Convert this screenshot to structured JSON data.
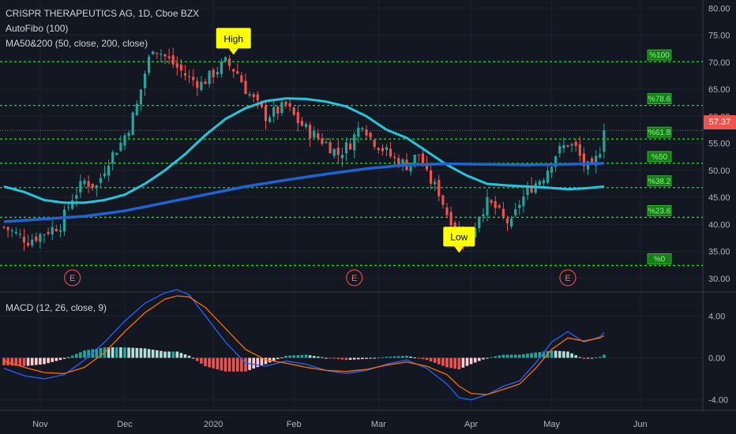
{
  "header": {
    "title": "CRISPR THERAPEUTICS AG, 1D, Cboe BZX",
    "indicator_fib": "AutoFibo (100)",
    "indicator_ma": "MA50&200 (50, close, 200, close)",
    "indicator_macd": "MACD (12, 26, close, 9)"
  },
  "last_price": "57.37",
  "colors": {
    "background": "#131722",
    "grid": "#1e2230",
    "up": "#26a69a",
    "down": "#ef5350",
    "ma50": "#26c6da",
    "ma200": "#1e63d1",
    "fib": "#33cc33",
    "macd_line": "#2962ff",
    "signal_line": "#ff6d00",
    "axis_text": "#b2b5be",
    "annotation": "#ffff00"
  },
  "chart_data": [
    {
      "type": "candlestick",
      "title": "CRISPR THERAPEUTICS AG, 1D, Cboe BZX",
      "y_axis_labels": [
        "80.00",
        "75.00",
        "70.00",
        "65.00",
        "60.00",
        "55.00",
        "50.00",
        "45.00",
        "40.00",
        "35.00",
        "30.00"
      ],
      "y_ticks": [
        80,
        75,
        70,
        65,
        60,
        55,
        50,
        45,
        40,
        35,
        30
      ],
      "ylim": [
        27.5,
        81.5
      ],
      "x_axis_labels": [
        "Nov",
        "Dec",
        "2020",
        "Feb",
        "Mar",
        "Apr",
        "May",
        "Jun"
      ],
      "x_label_index": [
        9,
        30,
        52,
        72,
        93,
        116,
        136,
        158
      ],
      "n_bars": 150,
      "close_keyframes": [
        [
          0,
          39.5
        ],
        [
          6,
          37
        ],
        [
          10,
          38.5
        ],
        [
          14,
          40
        ],
        [
          17,
          45
        ],
        [
          20,
          48
        ],
        [
          23,
          47
        ],
        [
          26,
          52
        ],
        [
          29,
          55
        ],
        [
          31,
          58
        ],
        [
          33,
          62
        ],
        [
          35,
          68
        ],
        [
          37,
          73
        ],
        [
          40,
          71
        ],
        [
          43,
          69
        ],
        [
          46,
          67
        ],
        [
          49,
          66
        ],
        [
          52,
          68
        ],
        [
          55,
          70
        ],
        [
          58,
          68
        ],
        [
          60,
          65
        ],
        [
          63,
          62
        ],
        [
          65,
          60
        ],
        [
          68,
          61
        ],
        [
          70,
          62
        ],
        [
          73,
          59
        ],
        [
          76,
          57
        ],
        [
          80,
          55
        ],
        [
          83,
          53
        ],
        [
          86,
          55
        ],
        [
          89,
          59
        ],
        [
          91,
          56
        ],
        [
          94,
          54
        ],
        [
          97,
          52
        ],
        [
          100,
          51
        ],
        [
          103,
          53
        ],
        [
          105,
          49
        ],
        [
          108,
          46
        ],
        [
          110,
          42
        ],
        [
          112,
          40
        ],
        [
          114,
          37.5
        ],
        [
          116,
          38
        ],
        [
          118,
          42
        ],
        [
          120,
          44
        ],
        [
          122,
          43
        ],
        [
          124,
          41
        ],
        [
          126,
          40
        ],
        [
          128,
          44
        ],
        [
          131,
          47
        ],
        [
          134,
          49
        ],
        [
          137,
          53
        ],
        [
          140,
          55
        ],
        [
          142,
          54
        ],
        [
          144,
          51
        ],
        [
          146,
          50
        ],
        [
          148,
          54
        ],
        [
          150,
          60
        ],
        [
          151,
          57.37
        ]
      ],
      "last_close": 57.37,
      "annotations": [
        {
          "text": "High",
          "index": 57,
          "value": 70.5,
          "pointer": "down"
        },
        {
          "text": "Low",
          "index": 113,
          "value": 33,
          "pointer": "up"
        }
      ],
      "earnings_markers": [
        {
          "text": "E",
          "index": 17
        },
        {
          "text": "E",
          "index": 87
        },
        {
          "text": "E",
          "index": 140
        }
      ],
      "fib_levels": [
        {
          "label": "%100",
          "value": 70.1
        },
        {
          "label": "%78.6",
          "value": 62.0
        },
        {
          "label": "%61.8",
          "value": 55.8
        },
        {
          "label": "%50",
          "value": 51.3
        },
        {
          "label": "%38.2",
          "value": 46.8
        },
        {
          "label": "%23.6",
          "value": 41.3
        },
        {
          "label": "%0",
          "value": 32.4
        }
      ],
      "series": [
        {
          "name": "MA50",
          "keyframes": [
            [
              0,
              47
            ],
            [
              5,
              46
            ],
            [
              10,
              44.5
            ],
            [
              15,
              44
            ],
            [
              20,
              44
            ],
            [
              25,
              44.5
            ],
            [
              30,
              45.5
            ],
            [
              35,
              47.5
            ],
            [
              40,
              50
            ],
            [
              45,
              53
            ],
            [
              50,
              56.5
            ],
            [
              55,
              59.5
            ],
            [
              60,
              61.5
            ],
            [
              65,
              62.8
            ],
            [
              70,
              63.3
            ],
            [
              75,
              63.2
            ],
            [
              80,
              62.7
            ],
            [
              85,
              61.8
            ],
            [
              90,
              60
            ],
            [
              95,
              57.5
            ],
            [
              100,
              56
            ],
            [
              105,
              53.5
            ],
            [
              110,
              51
            ],
            [
              115,
              49
            ],
            [
              120,
              47.5
            ],
            [
              125,
              47.2
            ],
            [
              130,
              47
            ],
            [
              135,
              46.8
            ],
            [
              140,
              46.5
            ],
            [
              145,
              46.7
            ],
            [
              149,
              47
            ]
          ]
        },
        {
          "name": "MA200",
          "keyframes": [
            [
              0,
              40.5
            ],
            [
              10,
              41
            ],
            [
              20,
              41.5
            ],
            [
              30,
              42.5
            ],
            [
              40,
              44
            ],
            [
              50,
              45.5
            ],
            [
              60,
              47
            ],
            [
              70,
              48.2
            ],
            [
              80,
              49.3
            ],
            [
              90,
              50.3
            ],
            [
              100,
              51
            ],
            [
              110,
              51.2
            ],
            [
              120,
              51.1
            ],
            [
              130,
              51
            ],
            [
              140,
              51.1
            ],
            [
              149,
              51.3
            ]
          ]
        }
      ]
    },
    {
      "type": "line",
      "title": "MACD (12, 26, close, 9)",
      "y_axis_labels": [
        "4.00",
        "0.00",
        "-4.00"
      ],
      "y_ticks": [
        4,
        0,
        -4
      ],
      "ylim": [
        -5,
        6.2
      ],
      "series": [
        {
          "name": "MACD",
          "keyframes": [
            [
              0,
              -1
            ],
            [
              5,
              -1.7
            ],
            [
              10,
              -2
            ],
            [
              15,
              -1.6
            ],
            [
              20,
              -0.2
            ],
            [
              25,
              1.5
            ],
            [
              30,
              3.5
            ],
            [
              35,
              5.2
            ],
            [
              40,
              6.2
            ],
            [
              43,
              6.5
            ],
            [
              46,
              6
            ],
            [
              50,
              4
            ],
            [
              55,
              1.5
            ],
            [
              60,
              -0.5
            ],
            [
              65,
              -0.8
            ],
            [
              70,
              -0.3
            ],
            [
              75,
              -0.6
            ],
            [
              80,
              -1.2
            ],
            [
              85,
              -1.5
            ],
            [
              90,
              -1.2
            ],
            [
              95,
              -0.6
            ],
            [
              100,
              -0.2
            ],
            [
              105,
              -1
            ],
            [
              110,
              -2.5
            ],
            [
              113,
              -3.8
            ],
            [
              116,
              -4
            ],
            [
              120,
              -3.5
            ],
            [
              124,
              -2.7
            ],
            [
              128,
              -2.2
            ],
            [
              132,
              -0.5
            ],
            [
              136,
              1.5
            ],
            [
              140,
              2.5
            ],
            [
              144,
              1.5
            ],
            [
              148,
              2
            ],
            [
              150,
              2.8
            ]
          ]
        },
        {
          "name": "Signal",
          "keyframes": [
            [
              0,
              -0.3
            ],
            [
              5,
              -0.9
            ],
            [
              10,
              -1.4
            ],
            [
              15,
              -1.5
            ],
            [
              20,
              -0.9
            ],
            [
              25,
              0.5
            ],
            [
              30,
              2.5
            ],
            [
              35,
              4.3
            ],
            [
              40,
              5.6
            ],
            [
              43,
              5.9
            ],
            [
              46,
              5.8
            ],
            [
              50,
              4.8
            ],
            [
              55,
              2.8
            ],
            [
              60,
              0.8
            ],
            [
              65,
              -0.2
            ],
            [
              70,
              -0.5
            ],
            [
              75,
              -0.9
            ],
            [
              80,
              -1.2
            ],
            [
              85,
              -1.3
            ],
            [
              90,
              -1.1
            ],
            [
              95,
              -0.7
            ],
            [
              100,
              -0.4
            ],
            [
              105,
              -0.8
            ],
            [
              110,
              -1.6
            ],
            [
              113,
              -2.7
            ],
            [
              116,
              -3.4
            ],
            [
              120,
              -3.5
            ],
            [
              124,
              -3
            ],
            [
              128,
              -2.5
            ],
            [
              132,
              -1
            ],
            [
              136,
              0.8
            ],
            [
              140,
              1.9
            ],
            [
              144,
              1.6
            ],
            [
              148,
              1.9
            ],
            [
              150,
              2.3
            ]
          ]
        }
      ],
      "histogram": "MACD minus Signal"
    }
  ]
}
